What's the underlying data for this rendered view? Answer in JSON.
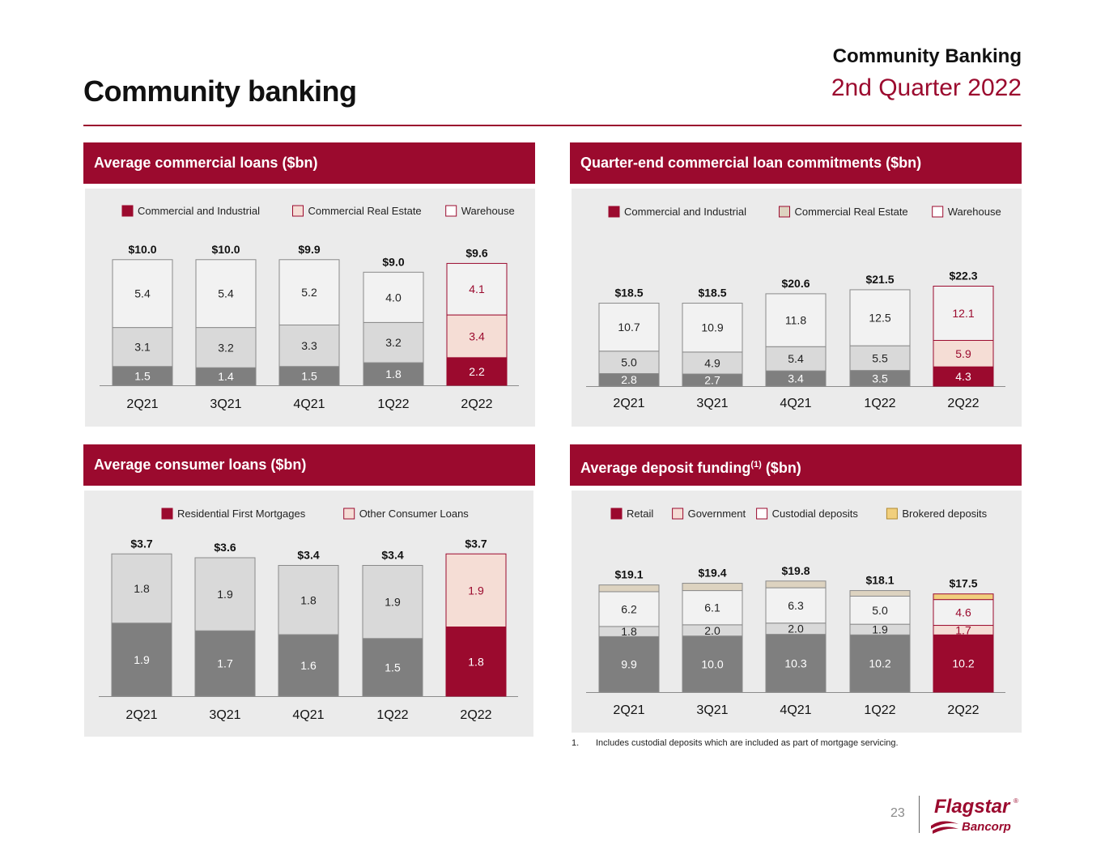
{
  "header": {
    "title": "Community banking",
    "section": "Community Banking",
    "period": "2nd Quarter 2022"
  },
  "colors": {
    "accent": "#9b0a2e",
    "dark_gray": "#7f7f7f",
    "light_gray": "#d9d9d9",
    "white_box": "#f2f2f2",
    "pink": "#f5ddd5",
    "beige": "#ddd3c0",
    "gold": "#f1cf7c"
  },
  "panels": {
    "commercial_loans": {
      "title": "Average commercial loans ($bn)"
    },
    "commitments": {
      "title": "Quarter-end commercial loan commitments ($bn)"
    },
    "consumer_loans": {
      "title": "Average consumer loans ($bn)"
    },
    "deposits": {
      "title_main": "Average deposit funding",
      "title_sup": "(1)",
      "title_end": " ($bn)"
    }
  },
  "chart_data": [
    {
      "id": "commercial_loans",
      "type": "bar",
      "stacked": true,
      "categories": [
        "2Q21",
        "3Q21",
        "4Q21",
        "1Q22",
        "2Q22"
      ],
      "totals": [
        "$10.0",
        "$10.0",
        "$9.9",
        "$9.0",
        "$9.6"
      ],
      "series": [
        {
          "name": "Commercial and Industrial",
          "values": [
            1.5,
            1.4,
            1.5,
            1.8,
            2.2
          ]
        },
        {
          "name": "Commercial Real Estate",
          "values": [
            3.1,
            3.2,
            3.3,
            3.2,
            3.4
          ]
        },
        {
          "name": "Warehouse",
          "values": [
            5.4,
            5.4,
            5.2,
            4.0,
            4.1
          ]
        }
      ],
      "ylim": [
        0,
        10.5
      ],
      "legend": "top",
      "grid": false
    },
    {
      "id": "commitments",
      "type": "bar",
      "stacked": true,
      "categories": [
        "2Q21",
        "3Q21",
        "4Q21",
        "1Q22",
        "2Q22"
      ],
      "totals": [
        "$18.5",
        "$18.5",
        "$20.6",
        "$21.5",
        "$22.3"
      ],
      "series": [
        {
          "name": "Commercial and Industrial",
          "values": [
            2.8,
            2.7,
            3.4,
            3.5,
            4.3
          ]
        },
        {
          "name": "Commercial Real Estate",
          "values": [
            5.0,
            4.9,
            5.4,
            5.5,
            5.9
          ]
        },
        {
          "name": "Warehouse",
          "values": [
            10.7,
            10.9,
            11.8,
            12.5,
            12.1
          ]
        }
      ],
      "ylim": [
        0,
        26
      ],
      "legend": "top",
      "grid": false
    },
    {
      "id": "consumer_loans",
      "type": "bar",
      "stacked": true,
      "categories": [
        "2Q21",
        "3Q21",
        "4Q21",
        "1Q22",
        "2Q22"
      ],
      "totals": [
        "$3.7",
        "$3.6",
        "$3.4",
        "$3.4",
        "$3.7"
      ],
      "series": [
        {
          "name": "Residential First Mortgages",
          "values": [
            1.9,
            1.7,
            1.6,
            1.5,
            1.8
          ]
        },
        {
          "name": "Other Consumer Loans",
          "values": [
            1.8,
            1.9,
            1.8,
            1.9,
            1.9
          ]
        }
      ],
      "ylim": [
        0,
        4.0
      ],
      "legend": "top",
      "grid": false
    },
    {
      "id": "deposits",
      "type": "bar",
      "stacked": true,
      "categories": [
        "2Q21",
        "3Q21",
        "4Q21",
        "1Q22",
        "2Q22"
      ],
      "totals": [
        "$19.1",
        "$19.4",
        "$19.8",
        "$18.1",
        "$17.5"
      ],
      "series": [
        {
          "name": "Retail",
          "values": [
            9.9,
            10.0,
            10.3,
            10.2,
            10.2
          ]
        },
        {
          "name": "Government",
          "values": [
            1.8,
            2.0,
            2.0,
            1.9,
            1.7
          ]
        },
        {
          "name": "Custodial deposits",
          "values": [
            6.2,
            6.1,
            6.3,
            5.0,
            4.6
          ]
        },
        {
          "name": "Brokered deposits",
          "values": [
            1.2,
            1.3,
            1.2,
            1.0,
            1.0
          ],
          "labeled": false
        }
      ],
      "ylim": [
        0,
        21.5
      ],
      "legend": "top",
      "grid": false
    }
  ],
  "footnote": {
    "number": "1.",
    "text": "Includes custodial deposits which are included as part of mortgage servicing."
  },
  "page_number": "23",
  "logo": {
    "name": "Flagstar",
    "reg": "®",
    "sub": "Bancorp"
  }
}
